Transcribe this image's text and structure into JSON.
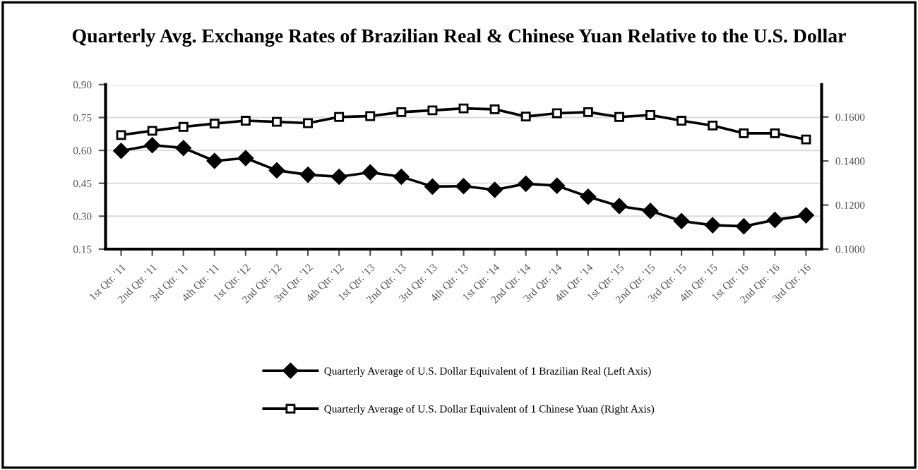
{
  "chart_data": {
    "type": "line",
    "title": "Quarterly Avg. Exchange Rates of Brazilian Real & Chinese Yuan Relative to the U.S. Dollar",
    "categories": [
      "1st Qtr. '11",
      "2nd Qtr. '11",
      "3rd Qtr. '11",
      "4th Qtr. '11",
      "1st Qtr. '12",
      "2nd Qtr. '12",
      "3rd Qtr. '12",
      "4th Qtr. '12",
      "1st Qtr. '13",
      "2nd Qtr. '13",
      "3rd Qtr. '13",
      "4th Qtr. '13",
      "1st Qtr. '14",
      "2nd Qtr. '14",
      "3rd Qtr. '14",
      "4th Qtr. '14",
      "1st Qtr. '15",
      "2nd Qtr. '15",
      "3rd Qtr. '15",
      "4th Qtr. '15",
      "1st Qtr. '16",
      "2nd Qtr. '16",
      "3rd Qtr. '16"
    ],
    "series": [
      {
        "name": "Quarterly Average of U.S. Dollar Equivalent of 1 Brazilian Real (Left Axis)",
        "color": "#000000",
        "marker": "diamond",
        "values": [
          0.598,
          0.624,
          0.611,
          0.552,
          0.565,
          0.509,
          0.489,
          0.48,
          0.5,
          0.48,
          0.435,
          0.437,
          0.42,
          0.448,
          0.439,
          0.389,
          0.346,
          0.324,
          0.278,
          0.259,
          0.254,
          0.283,
          0.304
        ]
      },
      {
        "name": "Quarterly Average of U.S. Dollar Equivalent of 1 Chinese Yuan (Right Axis)",
        "color": "#000000",
        "marker": "square",
        "axis": "y2",
        "values": [
          0.1518,
          0.1537,
          0.1555,
          0.157,
          0.1583,
          0.1578,
          0.1572,
          0.16,
          0.1604,
          0.1622,
          0.163,
          0.1639,
          0.1635,
          0.1602,
          0.1617,
          0.1622,
          0.16,
          0.1609,
          0.1583,
          0.1561,
          0.1526,
          0.1526,
          0.1498
        ]
      }
    ],
    "ylim": [
      0.15,
      0.9
    ],
    "yticks": [
      {
        "value": 0.15,
        "label": "0.15"
      },
      {
        "value": 0.3,
        "label": "0.30"
      },
      {
        "value": 0.45,
        "label": "0.45"
      },
      {
        "value": 0.6,
        "label": "0.60"
      },
      {
        "value": 0.75,
        "label": "0.75"
      },
      {
        "value": 0.9,
        "label": "0.90"
      }
    ],
    "y2lim": [
      0.1,
      0.1747
    ],
    "y2ticks": [
      {
        "value": 0.1,
        "label": "0.1000"
      },
      {
        "value": 0.12,
        "label": "0.1200"
      },
      {
        "value": 0.14,
        "label": "0.1400"
      },
      {
        "value": 0.16,
        "label": "0.1600"
      }
    ],
    "grid": "y",
    "legend": "bottom",
    "line_style": "solid"
  }
}
